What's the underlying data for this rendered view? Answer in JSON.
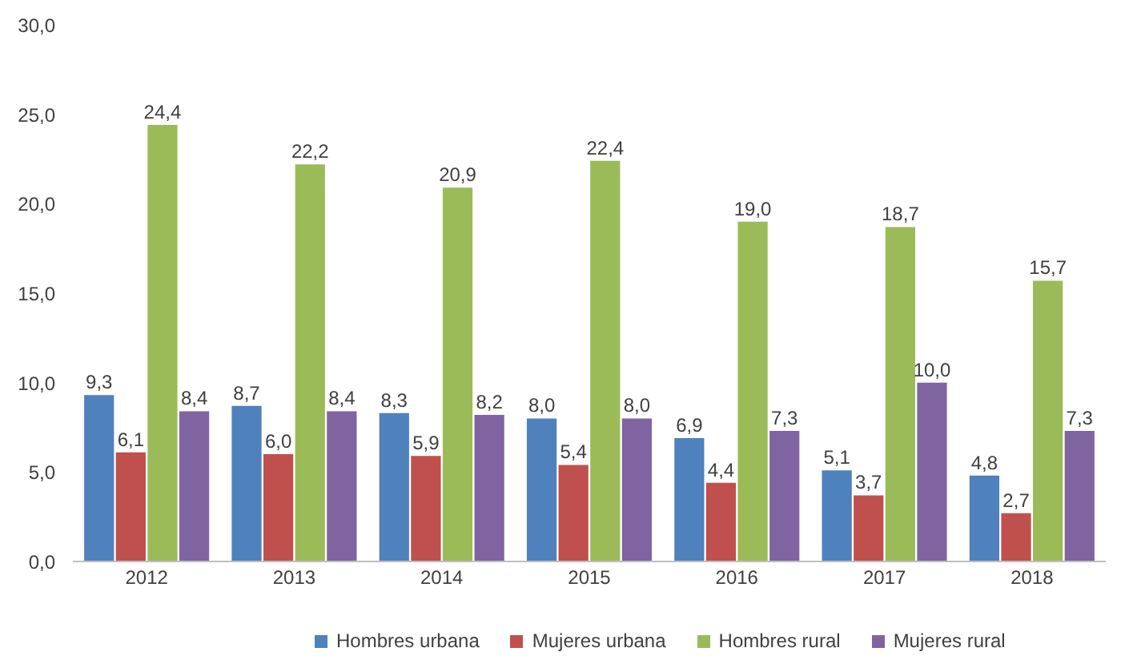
{
  "chart_data": {
    "type": "bar",
    "categories": [
      "2012",
      "2013",
      "2014",
      "2015",
      "2016",
      "2017",
      "2018"
    ],
    "series": [
      {
        "name": "Hombres urbana",
        "color": "#4f81bd",
        "values": [
          9.3,
          8.7,
          8.3,
          8.0,
          6.9,
          5.1,
          4.8
        ],
        "value_labels": [
          "9,3",
          "8,7",
          "8,3",
          "8,0",
          "6,9",
          "5,1",
          "4,8"
        ]
      },
      {
        "name": "Mujeres urbana",
        "color": "#c0504d",
        "values": [
          6.1,
          6.0,
          5.9,
          5.4,
          4.4,
          3.7,
          2.7
        ],
        "value_labels": [
          "6,1",
          "6,0",
          "5,9",
          "5,4",
          "4,4",
          "3,7",
          "2,7"
        ]
      },
      {
        "name": "Hombres rural",
        "color": "#9bbb59",
        "values": [
          24.4,
          22.2,
          20.9,
          22.4,
          19.0,
          18.7,
          15.7
        ],
        "value_labels": [
          "24,4",
          "22,2",
          "20,9",
          "22,4",
          "19,0",
          "18,7",
          "15,7"
        ]
      },
      {
        "name": "Mujeres rural",
        "color": "#8064a2",
        "values": [
          8.4,
          8.4,
          8.2,
          8.0,
          7.3,
          10.0,
          7.3
        ],
        "value_labels": [
          "8,4",
          "8,4",
          "8,2",
          "8,0",
          "7,3",
          "10,0",
          "7,3"
        ]
      }
    ],
    "ylim": [
      0,
      30
    ],
    "yticks": [
      {
        "value": 0,
        "label": "0,0"
      },
      {
        "value": 5,
        "label": "5,0"
      },
      {
        "value": 10,
        "label": "10,0"
      },
      {
        "value": 15,
        "label": "15,0"
      },
      {
        "value": 20,
        "label": "20,0"
      },
      {
        "value": 25,
        "label": "25,0"
      },
      {
        "value": 30,
        "label": "30,0"
      }
    ],
    "grid": false,
    "legend": "bottom"
  }
}
